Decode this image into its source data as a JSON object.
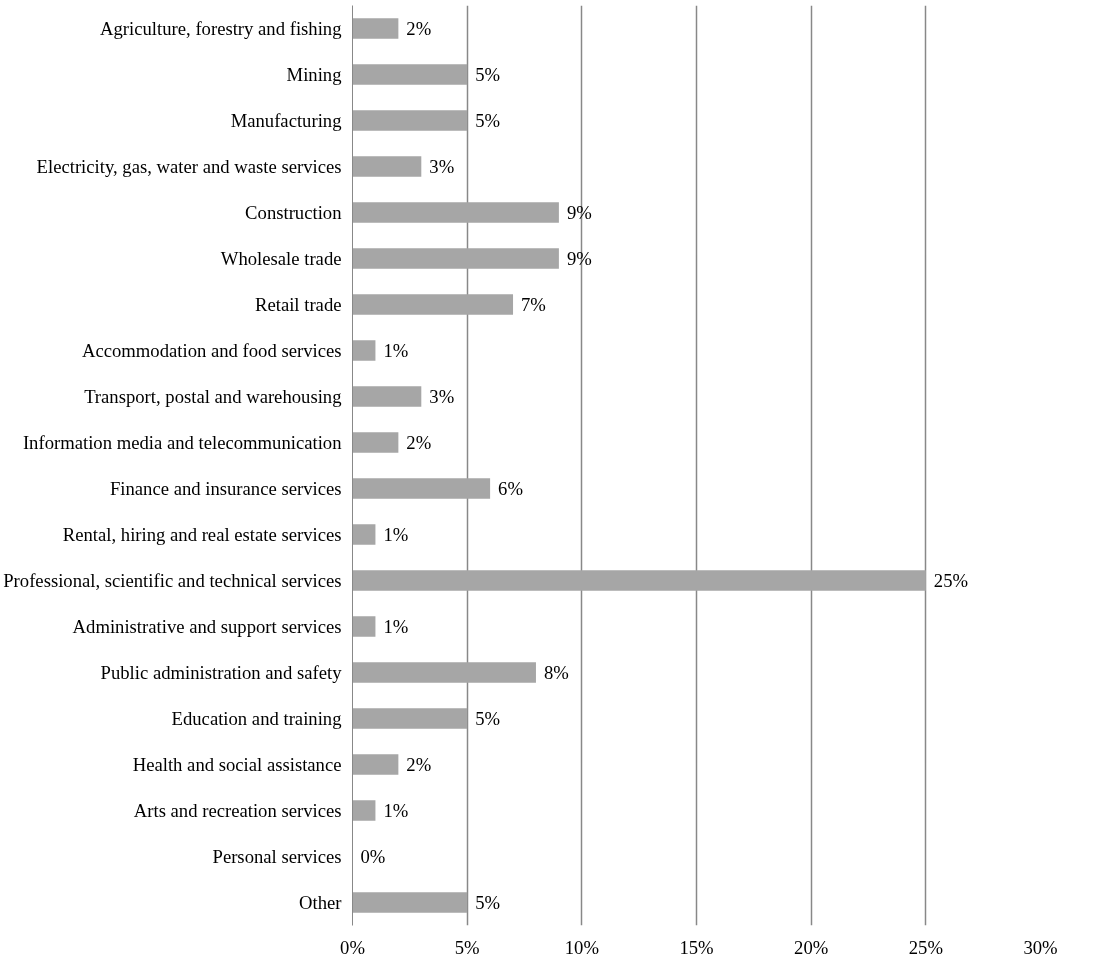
{
  "chart_data": {
    "type": "bar",
    "orientation": "horizontal",
    "categories": [
      "Agriculture, forestry and fishing",
      "Mining",
      "Manufacturing",
      "Electricity, gas, water and waste services",
      "Construction",
      "Wholesale trade",
      "Retail trade",
      "Accommodation and food services",
      "Transport, postal and warehousing",
      "Information media and telecommunication",
      "Finance and insurance services",
      "Rental, hiring and real estate services",
      "Professional, scientific and technical services",
      "Administrative and support services",
      "Public administration and safety",
      "Education and training",
      "Health and social assistance",
      "Arts and recreation services",
      "Personal services",
      "Other"
    ],
    "values": [
      2,
      5,
      5,
      3,
      9,
      9,
      7,
      1,
      3,
      2,
      6,
      1,
      25,
      1,
      8,
      5,
      2,
      1,
      0,
      5
    ],
    "value_labels": [
      "2%",
      "5%",
      "5%",
      "3%",
      "9%",
      "9%",
      "7%",
      "1%",
      "3%",
      "2%",
      "6%",
      "1%",
      "25%",
      "1%",
      "8%",
      "5%",
      "2%",
      "1%",
      "0%",
      "5%"
    ],
    "color": "#a6a6a6",
    "xlim": [
      0,
      30
    ],
    "xticks": [
      {
        "value": 0,
        "label": "0%"
      },
      {
        "value": 5,
        "label": "5%"
      },
      {
        "value": 10,
        "label": "10%"
      },
      {
        "value": 15,
        "label": "15%"
      },
      {
        "value": 20,
        "label": "20%"
      },
      {
        "value": 25,
        "label": "25%"
      },
      {
        "value": 30,
        "label": "30%"
      }
    ],
    "grid": "x"
  }
}
